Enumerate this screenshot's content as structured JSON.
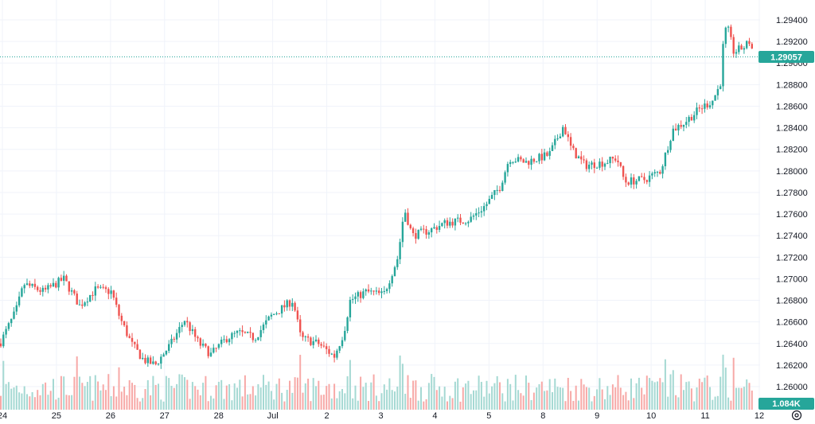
{
  "chart_data": {
    "type": "candlestick",
    "title": "",
    "price_axis": {
      "ticks": [
        "1.29400",
        "1.29200",
        "1.29000",
        "1.28800",
        "1.28600",
        "1.28400",
        "1.28200",
        "1.28000",
        "1.27800",
        "1.27600",
        "1.27400",
        "1.27200",
        "1.27000",
        "1.26800",
        "1.26600",
        "1.26400",
        "1.26200",
        "1.26000"
      ],
      "range": [
        1.2585,
        1.2955
      ]
    },
    "time_axis": {
      "ticks": [
        "24",
        "25",
        "26",
        "27",
        "28",
        "Jul",
        "2",
        "3",
        "4",
        "5",
        "8",
        "9",
        "10",
        "11",
        "12"
      ]
    },
    "last_price": "1.29057",
    "last_price_value": 1.29057,
    "volume_label": "1.084K",
    "price_path": [
      [
        0,
        1.264
      ],
      [
        20,
        1.267
      ],
      [
        30,
        1.2695
      ],
      [
        55,
        1.2688
      ],
      [
        80,
        1.27
      ],
      [
        100,
        1.2675
      ],
      [
        120,
        1.269
      ],
      [
        140,
        1.2688
      ],
      [
        150,
        1.2665
      ],
      [
        165,
        1.264
      ],
      [
        180,
        1.2625
      ],
      [
        195,
        1.262
      ],
      [
        215,
        1.264
      ],
      [
        232,
        1.2662
      ],
      [
        250,
        1.264
      ],
      [
        265,
        1.263
      ],
      [
        285,
        1.2645
      ],
      [
        300,
        1.265
      ],
      [
        320,
        1.2645
      ],
      [
        340,
        1.2665
      ],
      [
        368,
        1.268
      ],
      [
        378,
        1.2645
      ],
      [
        400,
        1.264
      ],
      [
        420,
        1.2628
      ],
      [
        432,
        1.265
      ],
      [
        440,
        1.268
      ],
      [
        460,
        1.2688
      ],
      [
        482,
        1.2685
      ],
      [
        500,
        1.272
      ],
      [
        508,
        1.2765
      ],
      [
        518,
        1.274
      ],
      [
        540,
        1.2745
      ],
      [
        560,
        1.2752
      ],
      [
        590,
        1.2755
      ],
      [
        610,
        1.2768
      ],
      [
        628,
        1.2785
      ],
      [
        640,
        1.2812
      ],
      [
        660,
        1.2808
      ],
      [
        690,
        1.2815
      ],
      [
        708,
        1.2842
      ],
      [
        718,
        1.282
      ],
      [
        735,
        1.2805
      ],
      [
        760,
        1.2808
      ],
      [
        775,
        1.2812
      ],
      [
        785,
        1.279
      ],
      [
        810,
        1.2792
      ],
      [
        830,
        1.28
      ],
      [
        845,
        1.2838
      ],
      [
        860,
        1.2845
      ],
      [
        880,
        1.2858
      ],
      [
        895,
        1.2865
      ],
      [
        905,
        1.288
      ],
      [
        910,
        1.293
      ],
      [
        915,
        1.293
      ],
      [
        922,
        1.291
      ],
      [
        935,
        1.2915
      ],
      [
        942,
        1.292
      ],
      [
        948,
        1.2906
      ]
    ],
    "colors": {
      "up": "#26a69a",
      "down": "#ef5350",
      "up_volume": "#a5d9d3",
      "down_volume": "#f7a9a7",
      "last_price_line": "#26a69a",
      "grid": "#f0f3fa"
    }
  }
}
